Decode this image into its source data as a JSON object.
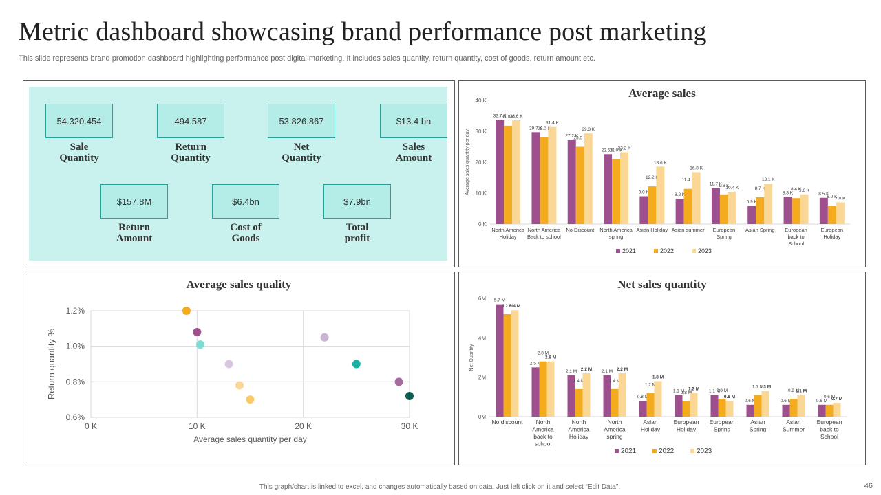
{
  "header": {
    "title": "Metric dashboard showcasing brand performance post marketing",
    "subtitle": "This slide represents brand promotion dashboard highlighting performance post digital marketing. It includes sales quantity, return quantity, cost of goods, return amount etc."
  },
  "kpis": [
    {
      "value": "54.320.454",
      "label": "Sale\nQuantity"
    },
    {
      "value": "494.587",
      "label": "Return\nQuantity"
    },
    {
      "value": "53.826.867",
      "label": "Net\nQuantity"
    },
    {
      "value": "$13.4  bn",
      "label": "Sales\nAmount"
    },
    {
      "value": "$157.8M",
      "label": "Return\nAmount"
    },
    {
      "value": "$6.4bn",
      "label": "Cost of\nGoods"
    },
    {
      "value": "$7.9bn",
      "label": "Total\nprofit"
    }
  ],
  "footer": {
    "note": "This graph/chart is linked to excel, and changes automatically based on data. Just left click on it and select “Edit Data”.",
    "page_number": "46"
  },
  "colors": {
    "s2021": "#9e4f8e",
    "s2022": "#f5ab1e",
    "s2023": "#fad795"
  },
  "chart_data": [
    {
      "id": "average-sales",
      "type": "bar",
      "title": "Average sales",
      "ylabel": "Average sales quantity per day",
      "ylim": [
        0,
        40
      ],
      "yticks": [
        "0 K",
        "10 K",
        "20 K",
        "30 K",
        "40 K"
      ],
      "categories": [
        "North America\nHoliday",
        "North America\nBack to school",
        "No Discount",
        "North America\nspring",
        "Asian Holiday",
        "Asian summer",
        "European\nSpring",
        "Asian Spring",
        "European\nback to\nSchool",
        "European\nHoliday"
      ],
      "series": [
        {
          "name": "2021",
          "values": [
            33.7,
            29.7,
            27.2,
            22.6,
            9.0,
            8.2,
            11.7,
            5.9,
            8.8,
            8.5
          ],
          "labels": [
            "33.7 K",
            "29.7 K",
            "27.2 K",
            "22.6 K",
            "9.0 K",
            "8.2 K",
            "11.7 K",
            "5.9 K",
            "8.8 K",
            "8.5 K"
          ]
        },
        {
          "name": "2022",
          "values": [
            31.8,
            28.0,
            25.0,
            21.0,
            12.2,
            11.4,
            9.6,
            8.7,
            8.4,
            6.0
          ],
          "labels": [
            "31.8 K",
            "28.0 K",
            "25.0 K",
            "21.0 K",
            "12.2 K",
            "11.4 K",
            "9.6 K",
            "8.7 K",
            "8.4 K",
            "6.0 K"
          ]
        },
        {
          "name": "2023",
          "values": [
            33.6,
            31.4,
            29.3,
            23.2,
            18.6,
            16.8,
            10.4,
            13.1,
            9.6,
            7.0
          ],
          "labels": [
            "33.6 K",
            "31.4 K",
            "29.3 K",
            "23.2 K",
            "18.6 K",
            "16.8 K",
            "10.4 K",
            "13.1 K",
            "9.6 K",
            "7.0 K"
          ]
        }
      ],
      "legend": [
        "2021",
        "2022",
        "2023"
      ]
    },
    {
      "id": "average-sales-quality",
      "type": "scatter",
      "title": "Average sales quality",
      "xlabel": "Average  sales quantity per day",
      "ylabel": "Return quantity %",
      "xlim": [
        0,
        30
      ],
      "ylim": [
        0.6,
        1.2
      ],
      "xticks": [
        "0 K",
        "10 K",
        "20 K",
        "30 K"
      ],
      "yticks": [
        "0.6%",
        "0.8%",
        "1.0%",
        "1.2%"
      ],
      "points": [
        {
          "x": 9.0,
          "y": 1.2,
          "color": "#f5ab1e"
        },
        {
          "x": 10.0,
          "y": 1.08,
          "color": "#9e4f8e"
        },
        {
          "x": 10.3,
          "y": 1.01,
          "color": "#7fdcd5"
        },
        {
          "x": 13.0,
          "y": 0.9,
          "color": "#d9c6e0"
        },
        {
          "x": 14.0,
          "y": 0.78,
          "color": "#fad795"
        },
        {
          "x": 15.0,
          "y": 0.7,
          "color": "#f9c96a"
        },
        {
          "x": 22.0,
          "y": 1.05,
          "color": "#cbb3d3"
        },
        {
          "x": 25.0,
          "y": 0.9,
          "color": "#19b2a5"
        },
        {
          "x": 29.0,
          "y": 0.8,
          "color": "#a56d9d"
        },
        {
          "x": 30.0,
          "y": 0.72,
          "color": "#0d5c52"
        }
      ]
    },
    {
      "id": "net-sales-quantity",
      "type": "bar",
      "title": "Net sales quantity",
      "ylabel": "Net Quantity",
      "ylim": [
        0,
        6
      ],
      "yticks": [
        "0M",
        "2M",
        "4M",
        "6M"
      ],
      "categories": [
        "No discount",
        "North\nAmerica\nback to\nschool",
        "North\nAmerica\nHoliday",
        "North\nAmerica\nspring",
        "Asian\nHoliday",
        "European\nHoliday",
        "European\nSpring",
        "Asian\nSpring",
        "Asian\nSummer",
        "European\nback to\nSchool"
      ],
      "series": [
        {
          "name": "2021",
          "values": [
            5.7,
            2.5,
            2.1,
            2.1,
            0.8,
            1.1,
            1.1,
            0.6,
            0.6,
            0.6
          ],
          "labels": [
            "5.7 M",
            "2.5 M",
            "2.1 M",
            "2.1 M",
            "0.8 M",
            "1.1 M",
            "1.1 M",
            "0.6 M",
            "0.6 M",
            "0.6 M"
          ]
        },
        {
          "name": "2022",
          "values": [
            5.2,
            2.8,
            1.4,
            1.4,
            1.2,
            0.8,
            0.9,
            1.1,
            0.9,
            0.6
          ],
          "labels": [
            "5.2 M",
            "2.8 M",
            "1.4 M",
            "1.4 M",
            "1.2 M",
            "0.8 M",
            "0.9 M",
            "1.1 M",
            "0.9 M",
            "0.6 M"
          ]
        },
        {
          "name": "2023",
          "values": [
            5.4,
            2.8,
            2.2,
            2.2,
            1.8,
            1.2,
            0.8,
            1.3,
            1.1,
            0.7
          ],
          "labels": [
            "5.4 M",
            "2.8 M",
            "2.2 M",
            "2.2 M",
            "1.8 M",
            "1.2 M",
            "0.8 M",
            "1.3 M",
            "1.1 M",
            "0.7 M"
          ]
        }
      ],
      "legend": [
        "2021",
        "2022",
        "2023"
      ]
    }
  ]
}
